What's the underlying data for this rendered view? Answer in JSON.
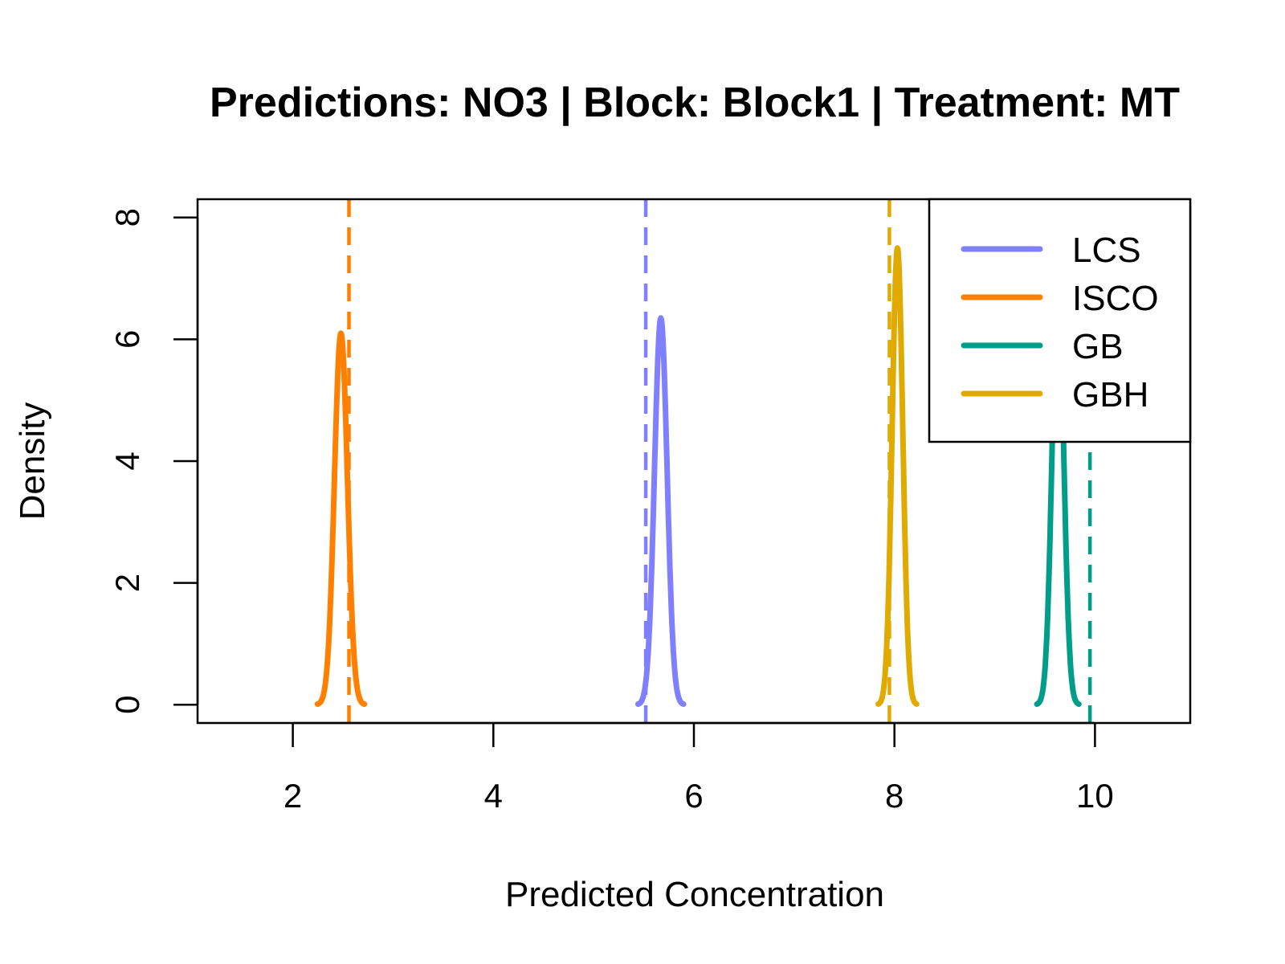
{
  "chart_data": {
    "type": "line",
    "title": "Predictions: NO3 | Block: Block1 | Treatment: MT",
    "xlabel": "Predicted Concentration",
    "ylabel": "Density",
    "xlim": [
      1.05,
      10.95
    ],
    "ylim": [
      -0.3,
      8.3
    ],
    "x_ticks": [
      2,
      4,
      6,
      8,
      10
    ],
    "y_ticks": [
      0,
      2,
      4,
      6,
      8
    ],
    "grid": false,
    "legend_position": "top-right",
    "series": [
      {
        "name": "LCS",
        "color": "#8080FF",
        "mean": 5.67,
        "sd": 0.063,
        "peak": 6.35,
        "reference_line": 5.52
      },
      {
        "name": "ISCO",
        "color": "#FF7F00",
        "mean": 2.48,
        "sd": 0.065,
        "peak": 6.1,
        "reference_line": 2.56
      },
      {
        "name": "GB",
        "color": "#009E88",
        "mean": 9.63,
        "sd": 0.058,
        "peak": 6.9,
        "reference_line": 9.95
      },
      {
        "name": "GBH",
        "color": "#E0AA00",
        "mean": 8.03,
        "sd": 0.053,
        "peak": 7.5,
        "reference_line": 7.95
      }
    ]
  }
}
